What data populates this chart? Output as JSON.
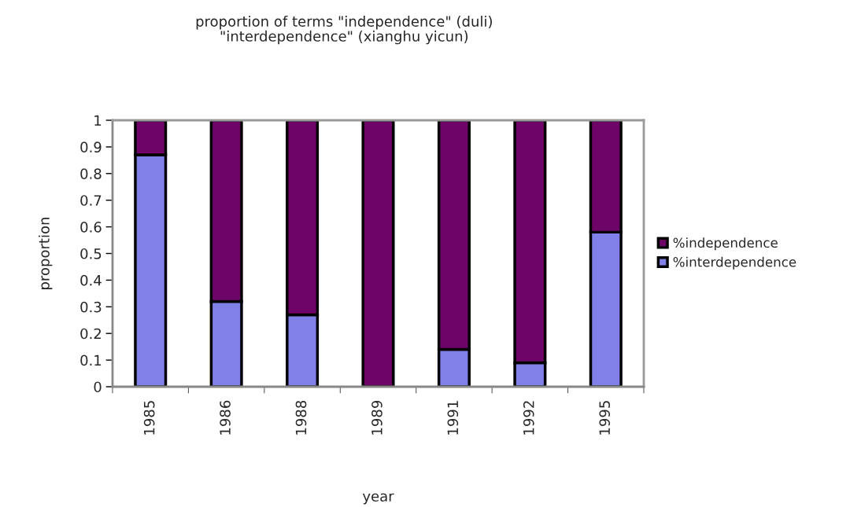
{
  "chart_data": {
    "type": "bar",
    "title": "proportion of terms \"independence\" (duli)\n\"interdependence\" (xianghu yicun)",
    "xlabel": "year",
    "ylabel": "proportion",
    "categories": [
      "1985",
      "1986",
      "1988",
      "1989",
      "1991",
      "1992",
      "1995"
    ],
    "stacked": true,
    "series": [
      {
        "name": "%interdependence",
        "color": "#8080e8",
        "values": [
          0.87,
          0.32,
          0.27,
          0,
          0.14,
          0.09,
          0.58
        ]
      },
      {
        "name": "%independence",
        "color": "#6e0468",
        "values": [
          0.13,
          0.68,
          0.73,
          1,
          0.86,
          0.91,
          0.42
        ]
      }
    ],
    "ylim": [
      0,
      1
    ],
    "yticks": [
      0,
      0.1,
      0.2,
      0.3,
      0.4,
      0.5,
      0.6,
      0.7,
      0.8,
      0.9,
      1
    ],
    "grid": false,
    "legend": "right"
  }
}
